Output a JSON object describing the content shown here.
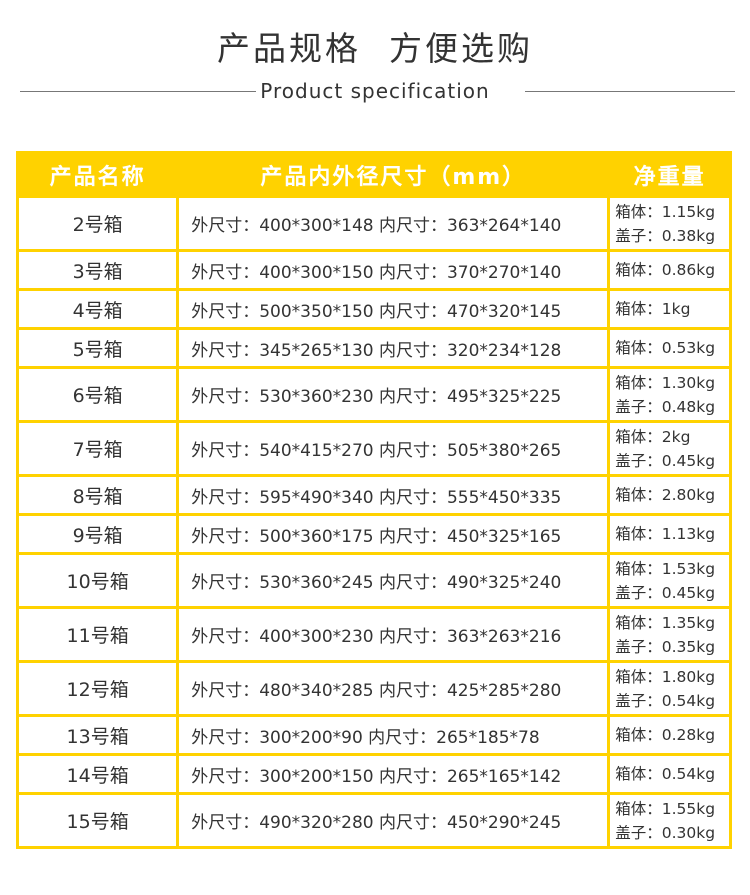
{
  "header": {
    "title_part1": "产品规格",
    "title_part2": "方便选购",
    "subtitle": "Product specification"
  },
  "table": {
    "columns": [
      "产品名称",
      "产品内外径尺寸（mm）",
      "净重量"
    ],
    "rows": [
      {
        "name": "2号箱",
        "size": "外尺寸：400*300*148 内尺寸：363*264*140",
        "weight": [
          "箱体：1.15kg",
          "盖子：0.38kg"
        ]
      },
      {
        "name": "3号箱",
        "size": "外尺寸：400*300*150 内尺寸：370*270*140",
        "weight": [
          "箱体：0.86kg"
        ]
      },
      {
        "name": "4号箱",
        "size": "外尺寸：500*350*150 内尺寸：470*320*145",
        "weight": [
          "箱体：1kg"
        ]
      },
      {
        "name": "5号箱",
        "size": "外尺寸：345*265*130 内尺寸：320*234*128",
        "weight": [
          "箱体：0.53kg"
        ]
      },
      {
        "name": "6号箱",
        "size": "外尺寸：530*360*230 内尺寸：495*325*225",
        "weight": [
          "箱体：1.30kg",
          "盖子：0.48kg"
        ]
      },
      {
        "name": "7号箱",
        "size": "外尺寸：540*415*270 内尺寸：505*380*265",
        "weight": [
          "箱体：2kg",
          "盖子：0.45kg"
        ]
      },
      {
        "name": "8号箱",
        "size": "外尺寸：595*490*340 内尺寸：555*450*335",
        "weight": [
          "箱体：2.80kg"
        ]
      },
      {
        "name": "9号箱",
        "size": "外尺寸：500*360*175 内尺寸：450*325*165",
        "weight": [
          "箱体：1.13kg"
        ]
      },
      {
        "name": "10号箱",
        "size": "外尺寸：530*360*245 内尺寸：490*325*240",
        "weight": [
          "箱体：1.53kg",
          "盖子：0.45kg"
        ]
      },
      {
        "name": "11号箱",
        "size": "外尺寸：400*300*230 内尺寸：363*263*216",
        "weight": [
          "箱体：1.35kg",
          "盖子：0.35kg"
        ]
      },
      {
        "name": "12号箱",
        "size": "外尺寸：480*340*285 内尺寸：425*285*280",
        "weight": [
          "箱体：1.80kg",
          "盖子：0.54kg"
        ]
      },
      {
        "name": "13号箱",
        "size": "外尺寸：300*200*90 内尺寸：265*185*78",
        "weight": [
          "箱体：0.28kg"
        ]
      },
      {
        "name": "14号箱",
        "size": "外尺寸：300*200*150 内尺寸：265*165*142",
        "weight": [
          "箱体：0.54kg"
        ]
      },
      {
        "name": "15号箱",
        "size": "外尺寸：490*320*280 内尺寸：450*290*245",
        "weight": [
          "箱体：1.55kg",
          "盖子：0.30kg"
        ]
      }
    ]
  },
  "colors": {
    "accent": "#FFD200",
    "text": "#333333"
  }
}
